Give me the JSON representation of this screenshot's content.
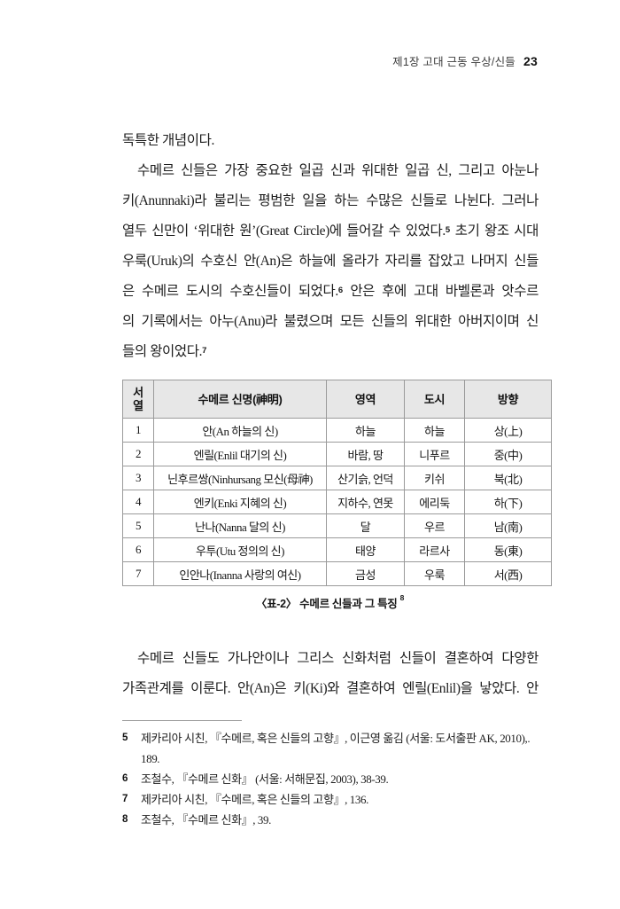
{
  "header": {
    "chapter_title": "제1장  고대 근동 우상/신들",
    "page_number": "23"
  },
  "body": {
    "para1": "독특한 개념이다.",
    "para2": {
      "l1": "수메르 신들은 가장 중요한 일곱 신과 위대한 일곱 신, 그리고 아눈나",
      "l2": "키(Anunnaki)라 불리는 평범한 일을 하는 수많은 신들로 나뉜다. 그러나",
      "l3a": "열두 신만이 ‘위대한 원’(Great Circle)에 들어갈 수 있었다.",
      "l3sup": "5",
      "l3b": " 초기 왕조 시대",
      "l4": "우룩(Uruk)의 수호신 안(An)은 하늘에 올라가 자리를 잡았고 나머지 신들",
      "l5a": "은 수메르 도시의 수호신들이 되었다.",
      "l5sup": "6",
      "l5b": " 안은 후에 고대 바벨론과 앗수르",
      "l6": "의 기록에서는 아누(Anu)라 불렸으며 모든 신들의 위대한 아버지이며 신",
      "l7a": "들의 왕이었다.",
      "l7sup": "7"
    },
    "para3": {
      "l1": "수메르 신들도 가나안이나 그리스 신화처럼 신들이 결혼하여 다양한",
      "l2": "가족관계를 이룬다. 안(An)은 키(Ki)와 결혼하여 엔릴(Enlil)을 낳았다. 안"
    }
  },
  "table": {
    "columns": [
      "서\n열",
      "수메르 신명(神明)",
      "영역",
      "도시",
      "방향"
    ],
    "rows": [
      [
        "1",
        "안(An 하늘의 신)",
        "하늘",
        "하늘",
        "상(上)"
      ],
      [
        "2",
        "엔릴(Enlil 대기의 신)",
        "바람, 땅",
        "니푸르",
        "중(中)"
      ],
      [
        "3",
        "닌후르쌍(Ninhursang 모신(母神)",
        "산기슭, 언덕",
        "키쉬",
        "북(北)"
      ],
      [
        "4",
        "엔키(Enki 지혜의 신)",
        "지하수, 연못",
        "에리둑",
        "하(下)"
      ],
      [
        "5",
        "난나(Nanna 달의 신)",
        "달",
        "우르",
        "남(南)"
      ],
      [
        "6",
        "우투(Utu 정의의 신)",
        "태양",
        "라르사",
        "동(東)"
      ],
      [
        "7",
        "인안나(Inanna 사랑의 여신)",
        "금성",
        "우룩",
        "서(西)"
      ]
    ],
    "caption": "〈표-2〉 수메르 신들과 그 특징",
    "caption_sup": "8"
  },
  "footnotes": {
    "items": [
      {
        "num": "5",
        "text": "제카리아 시친, 『수메르, 혹은 신들의 고향』, 이근영 옮김 (서울: 도서출판 AK, 2010),.\n189."
      },
      {
        "num": "6",
        "text": "조철수, 『수메르 신화』 (서울: 서해문집, 2003), 38-39."
      },
      {
        "num": "7",
        "text": "제카리아 시친, 『수메르, 혹은 신들의 고향』, 136."
      },
      {
        "num": "8",
        "text": "조철수, 『수메르 신화』, 39."
      }
    ]
  }
}
